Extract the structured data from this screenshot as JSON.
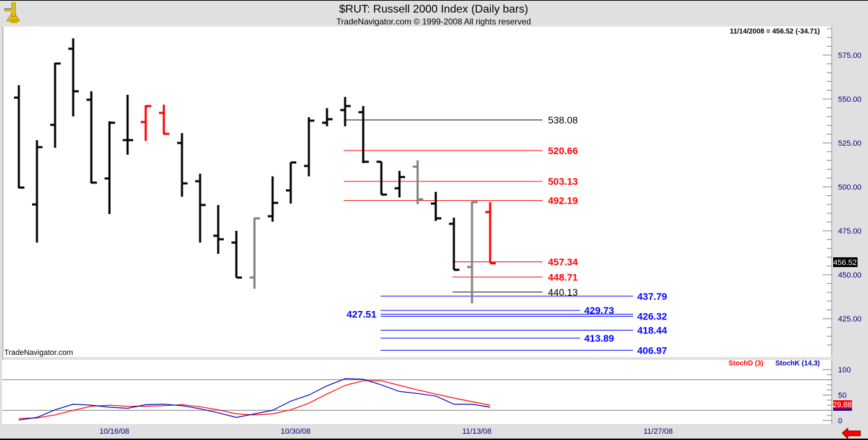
{
  "header": {
    "title": "$RUT:  Russell 2000 Index  (Daily bars)",
    "subtitle": "TradeNavigator.com © 1999-2008 All rights reserved",
    "logo_icon": "sextant-icon"
  },
  "watermark": "TradeNavigator.com",
  "nav_arrow_icon": "red-left-arrow-icon",
  "chart_data": {
    "type": "ohlc",
    "readout": "11/14/2008 = 456.52 (-34.71)",
    "last_price_label": "456.52",
    "ylim": [
      406,
      590
    ],
    "y_ticks": [
      "575.00",
      "550.00",
      "525.00",
      "500.00",
      "475.00",
      "450.00",
      "425.00"
    ],
    "x_tick_labels": [
      {
        "label": "10/16/08",
        "bar": 5
      },
      {
        "label": "10/30/08",
        "bar": 15
      },
      {
        "label": "11/13/08",
        "bar": 25
      },
      {
        "label": "11/27/08",
        "bar": 35
      }
    ],
    "colors": {
      "up": "#000000",
      "down_red": "#ff0000",
      "neutral_gray": "#808080",
      "stochD": "#ff0000",
      "stochK": "#0000c0",
      "levels_red": "#ff0000",
      "levels_black": "#000000",
      "levels_blue": "#0000ff"
    },
    "bars": [
      {
        "date": "10/9/08",
        "o": 550.8,
        "h": 557.9,
        "l": 499.2,
        "c": 499.6,
        "color": "black"
      },
      {
        "date": "10/10/08",
        "o": 490.0,
        "h": 526.6,
        "l": 468.3,
        "c": 522.6,
        "color": "black"
      },
      {
        "date": "10/13/08",
        "o": 535.3,
        "h": 570.6,
        "l": 522.2,
        "c": 570.2,
        "color": "black"
      },
      {
        "date": "10/14/08",
        "o": 578.6,
        "h": 584.5,
        "l": 540.1,
        "c": 554.4,
        "color": "black"
      },
      {
        "date": "10/15/08",
        "o": 549.6,
        "h": 554.4,
        "l": 502.0,
        "c": 502.4,
        "color": "black"
      },
      {
        "date": "10/16/08",
        "o": 504.8,
        "h": 537.3,
        "l": 484.5,
        "c": 536.5,
        "color": "black"
      },
      {
        "date": "10/17/08",
        "o": 526.6,
        "h": 552.4,
        "l": 518.3,
        "c": 526.6,
        "color": "black"
      },
      {
        "date": "10/20/08",
        "o": 536.9,
        "h": 546.4,
        "l": 526.2,
        "c": 546.0,
        "color": "red"
      },
      {
        "date": "10/21/08",
        "o": 542.1,
        "h": 546.8,
        "l": 529.8,
        "c": 530.2,
        "color": "red"
      },
      {
        "date": "10/22/08",
        "o": 525.0,
        "h": 530.6,
        "l": 494.4,
        "c": 502.0,
        "color": "black"
      },
      {
        "date": "10/23/08",
        "o": 503.2,
        "h": 507.5,
        "l": 468.3,
        "c": 489.7,
        "color": "black"
      },
      {
        "date": "10/24/08",
        "o": 472.2,
        "h": 489.7,
        "l": 461.9,
        "c": 470.2,
        "color": "black"
      },
      {
        "date": "10/27/08",
        "o": 468.3,
        "h": 475.0,
        "l": 448.4,
        "c": 448.4,
        "color": "black"
      },
      {
        "date": "10/28/08",
        "o": 448.4,
        "h": 482.5,
        "l": 442.0,
        "c": 482.1,
        "color": "gray"
      },
      {
        "date": "10/29/08",
        "o": 483.3,
        "h": 506.0,
        "l": 480.2,
        "c": 490.9,
        "color": "black"
      },
      {
        "date": "10/30/08",
        "o": 498.0,
        "h": 513.9,
        "l": 490.5,
        "c": 513.9,
        "color": "black"
      },
      {
        "date": "10/31/08",
        "o": 511.9,
        "h": 539.7,
        "l": 506.0,
        "c": 537.7,
        "color": "black"
      },
      {
        "date": "11/3/08",
        "o": 536.5,
        "h": 544.8,
        "l": 534.5,
        "c": 538.5,
        "color": "black"
      },
      {
        "date": "11/4/08",
        "o": 543.7,
        "h": 551.2,
        "l": 534.5,
        "c": 546.0,
        "color": "black"
      },
      {
        "date": "11/5/08",
        "o": 542.5,
        "h": 546.0,
        "l": 513.5,
        "c": 514.3,
        "color": "black"
      },
      {
        "date": "11/6/08",
        "o": 514.3,
        "h": 514.3,
        "l": 495.6,
        "c": 495.6,
        "color": "black"
      },
      {
        "date": "11/7/08",
        "o": 499.2,
        "h": 509.1,
        "l": 494.0,
        "c": 505.6,
        "color": "black"
      },
      {
        "date": "11/10/08",
        "o": 511.5,
        "h": 515.1,
        "l": 490.1,
        "c": 492.9,
        "color": "gray"
      },
      {
        "date": "11/11/08",
        "o": 490.5,
        "h": 497.2,
        "l": 480.6,
        "c": 482.1,
        "color": "black"
      },
      {
        "date": "11/12/08",
        "o": 479.0,
        "h": 482.5,
        "l": 452.8,
        "c": 452.8,
        "color": "black"
      },
      {
        "date": "11/13/08",
        "o": 454.4,
        "h": 491.7,
        "l": 433.7,
        "c": 491.3,
        "color": "gray"
      },
      {
        "date": "11/14/08",
        "o": 485.7,
        "h": 491.3,
        "l": 456.7,
        "c": 456.5,
        "color": "red"
      }
    ],
    "levels": [
      {
        "label": "538.08",
        "value": 538.08,
        "color": "black",
        "start_bar": 18,
        "label_side": "mid"
      },
      {
        "label": "520.66",
        "value": 520.66,
        "color": "red",
        "start_bar": 18,
        "label_side": "mid"
      },
      {
        "label": "503.13",
        "value": 503.13,
        "color": "red",
        "start_bar": 18,
        "label_side": "mid"
      },
      {
        "label": "492.19",
        "value": 492.19,
        "color": "red",
        "start_bar": 18,
        "label_side": "mid"
      },
      {
        "label": "457.34",
        "value": 457.34,
        "color": "red",
        "start_bar": 24,
        "label_side": "mid"
      },
      {
        "label": "448.71",
        "value": 448.71,
        "color": "red",
        "start_bar": 24,
        "label_side": "mid"
      },
      {
        "label": "440.13",
        "value": 440.13,
        "color": "black",
        "start_bar": 24,
        "label_side": "mid"
      },
      {
        "label": "437.79",
        "value": 437.79,
        "color": "blue",
        "start_bar": 20,
        "label_side": "far"
      },
      {
        "label": "429.73",
        "value": 429.73,
        "color": "blue",
        "start_bar": 20,
        "label_side": "near"
      },
      {
        "label": "427.51",
        "value": 427.51,
        "color": "blue",
        "start_bar": 20,
        "label_side": "left"
      },
      {
        "label": "426.32",
        "value": 426.32,
        "color": "blue",
        "start_bar": 20,
        "label_side": "far"
      },
      {
        "label": "418.44",
        "value": 418.44,
        "color": "blue",
        "start_bar": 20,
        "label_side": "far"
      },
      {
        "label": "413.89",
        "value": 413.89,
        "color": "blue",
        "start_bar": 20,
        "label_side": "near"
      },
      {
        "label": "406.97",
        "value": 406.97,
        "color": "blue",
        "start_bar": 20,
        "label_side": "far"
      }
    ],
    "stochastic": {
      "legend_d": "StochD (3)",
      "legend_k": "StochK (14,3)",
      "ylim": [
        0,
        100
      ],
      "y_ticks": [
        "100",
        "50",
        "0"
      ],
      "guide_levels": [
        80,
        20
      ],
      "last_value_label": "29.88",
      "stochK": [
        1,
        6,
        21,
        32,
        30,
        26,
        24,
        31,
        32,
        29,
        23,
        15,
        6,
        13,
        20,
        38,
        50,
        68,
        82,
        81,
        70,
        57,
        53,
        48,
        32,
        32,
        26
      ],
      "stochD": [
        4,
        5,
        11,
        20,
        28,
        30,
        28,
        28,
        29,
        31,
        27,
        21,
        13,
        11,
        13,
        21,
        34,
        52,
        69,
        78,
        78,
        69,
        60,
        52,
        44,
        37,
        30
      ]
    }
  }
}
